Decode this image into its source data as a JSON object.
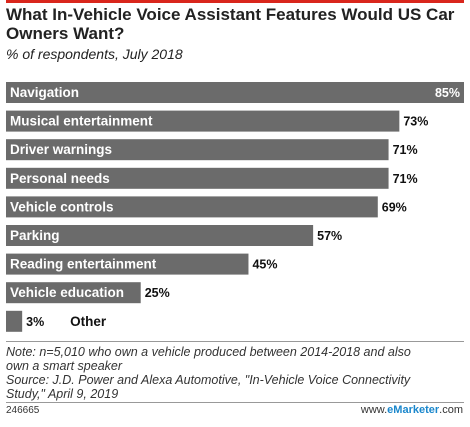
{
  "colors": {
    "accent": "#d9261c",
    "bar": "#6b6b6b"
  },
  "header": {
    "title": "What In-Vehicle Voice Assistant Features Would US Car Owners Want?",
    "subtitle": "% of respondents, July 2018"
  },
  "chart_data": {
    "type": "bar",
    "orientation": "horizontal",
    "title": "What In-Vehicle Voice Assistant Features Would US Car Owners Want?",
    "subtitle": "% of respondents, July 2018",
    "categories": [
      "Navigation",
      "Musical entertainment",
      "Driver warnings",
      "Personal needs",
      "Vehicle controls",
      "Parking",
      "Reading entertainment",
      "Vehicle education",
      "Other"
    ],
    "values": [
      85,
      73,
      71,
      71,
      69,
      57,
      45,
      25,
      3
    ],
    "value_labels": [
      "85%",
      "73%",
      "71%",
      "71%",
      "69%",
      "57%",
      "45%",
      "25%",
      "3%"
    ],
    "xlim": [
      0,
      85
    ],
    "grid": false,
    "legend": "none"
  },
  "footer": {
    "note_line1": "Note: n=5,010 who own a vehicle produced between 2014-2018 and also",
    "note_line2": "own a smart speaker",
    "source_line1": "Source: J.D. Power and Alexa Automotive, \"In-Vehicle Voice Connectivity",
    "source_line2": "Study,\" April 9, 2019",
    "chart_id": "246665",
    "brand_prefix": "www.",
    "brand_name": "eMarketer",
    "brand_suffix": ".com"
  }
}
